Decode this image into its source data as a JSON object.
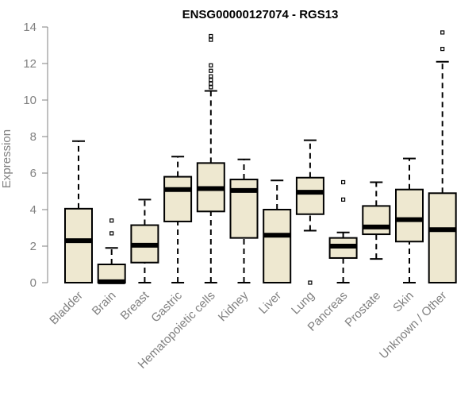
{
  "chart_data": {
    "type": "box",
    "title": "ENSG00000127074 - RGS13",
    "xlabel": "",
    "ylabel": "Expression",
    "ylim": [
      0,
      14
    ],
    "yticks": [
      "0",
      "2",
      "4",
      "6",
      "8",
      "10",
      "12",
      "14"
    ],
    "grid": false,
    "box_fill": "#EEE8D0",
    "line_color": "#000000",
    "categories": [
      "Bladder",
      "Brain",
      "Breast",
      "Gastric",
      "Hematopoietic cells",
      "Kidney",
      "Liver",
      "Lung",
      "Pancreas",
      "Prostate",
      "Skin",
      "Unknown / Other"
    ],
    "boxes": [
      {
        "min": 0,
        "q1": 0,
        "median": 2.3,
        "q3": 4.05,
        "max": 7.75,
        "outliers": []
      },
      {
        "min": 0,
        "q1": 0,
        "median": 0.05,
        "q3": 1.0,
        "max": 1.9,
        "outliers": [
          2.7,
          3.4
        ]
      },
      {
        "min": 0,
        "q1": 1.1,
        "median": 2.05,
        "q3": 3.15,
        "max": 4.55,
        "outliers": []
      },
      {
        "min": 0,
        "q1": 3.35,
        "median": 5.1,
        "q3": 5.8,
        "max": 6.9,
        "outliers": []
      },
      {
        "min": 0,
        "q1": 3.9,
        "median": 5.15,
        "q3": 6.55,
        "max": 10.5,
        "outliers": [
          10.7,
          10.9,
          11.1,
          11.3,
          11.6,
          11.9,
          13.3,
          13.5
        ]
      },
      {
        "min": 0,
        "q1": 2.45,
        "median": 5.05,
        "q3": 5.65,
        "max": 6.75,
        "outliers": []
      },
      {
        "min": 0,
        "q1": 0,
        "median": 2.6,
        "q3": 4.0,
        "max": 5.6,
        "outliers": []
      },
      {
        "min": 2.85,
        "q1": 3.75,
        "median": 4.95,
        "q3": 5.75,
        "max": 7.8,
        "outliers": [
          0
        ]
      },
      {
        "min": 0,
        "q1": 1.35,
        "median": 2.0,
        "q3": 2.45,
        "max": 2.75,
        "outliers": [
          4.55,
          5.5
        ]
      },
      {
        "min": 1.3,
        "q1": 2.65,
        "median": 3.05,
        "q3": 4.2,
        "max": 5.5,
        "outliers": []
      },
      {
        "min": 0,
        "q1": 2.25,
        "median": 3.45,
        "q3": 5.1,
        "max": 6.8,
        "outliers": []
      },
      {
        "min": 0,
        "q1": 0,
        "median": 2.9,
        "q3": 4.9,
        "max": 12.1,
        "outliers": [
          12.8,
          13.7
        ]
      }
    ]
  }
}
